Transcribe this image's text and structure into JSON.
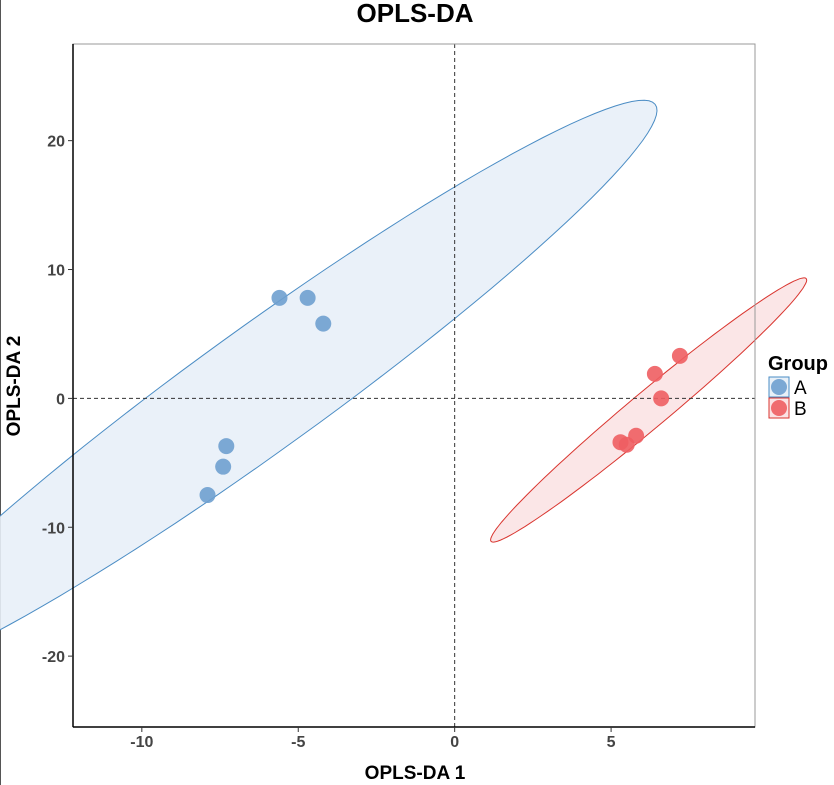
{
  "chart_data": {
    "type": "scatter",
    "title": "OPLS-DA",
    "xlabel": "OPLS-DA 1",
    "ylabel": "OPLS-DA 2",
    "xlim": [
      -12.2,
      9.6
    ],
    "ylim": [
      -25.5,
      27.5
    ],
    "x_ticks": [
      -10,
      -5,
      0,
      5
    ],
    "x_tick_labels": [
      "-10",
      "-5",
      "0",
      "5"
    ],
    "y_ticks": [
      -20,
      -10,
      0,
      10,
      20
    ],
    "y_tick_labels": [
      "-20",
      "-10",
      "0",
      "10",
      "20"
    ],
    "grid": false,
    "reference_lines": {
      "x": 0,
      "y": 0,
      "style": "dashed"
    },
    "legend": {
      "title": "Group",
      "placement": "right"
    },
    "series": [
      {
        "name": "A",
        "color": "#6FA0CF",
        "ellipse_stroke": "#4A8CC4",
        "ellipse_fill": "#E8F0F8",
        "points": [
          {
            "x": -5.6,
            "y": 7.8
          },
          {
            "x": -4.7,
            "y": 7.8
          },
          {
            "x": -4.2,
            "y": 5.8
          },
          {
            "x": -7.3,
            "y": -3.7
          },
          {
            "x": -7.4,
            "y": -5.3
          },
          {
            "x": -7.9,
            "y": -7.5
          }
        ],
        "ellipse": {
          "cx": -6.2,
          "cy": 0.7,
          "a": 25.6,
          "b": 2.9,
          "angle_deg": 61
        }
      },
      {
        "name": "B",
        "color": "#EE5E62",
        "ellipse_stroke": "#D9352F",
        "ellipse_fill": "#FBE3E4",
        "points": [
          {
            "x": 7.2,
            "y": 3.3
          },
          {
            "x": 6.4,
            "y": 1.9
          },
          {
            "x": 6.6,
            "y": 0.0
          },
          {
            "x": 5.8,
            "y": -2.9
          },
          {
            "x": 5.3,
            "y": -3.4
          },
          {
            "x": 5.5,
            "y": -3.6
          }
        ],
        "ellipse": {
          "cx": 6.2,
          "cy": -0.9,
          "a": 11.4,
          "b": 0.82,
          "angle_deg": 64
        }
      }
    ]
  }
}
